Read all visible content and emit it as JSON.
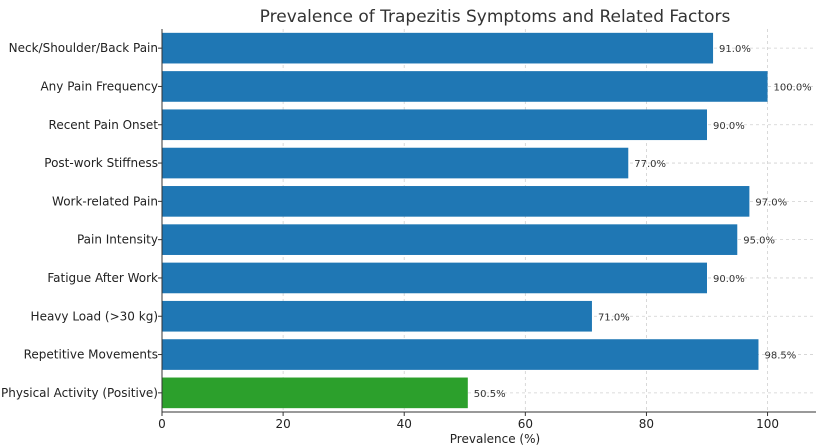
{
  "chart_data": {
    "type": "bar",
    "orientation": "horizontal",
    "title": "Prevalence of Trapezitis Symptoms and Related Factors",
    "xlabel": "Prevalence (%)",
    "ylabel": "",
    "xlim": [
      0,
      108
    ],
    "xticks": [
      0,
      20,
      40,
      60,
      80,
      100
    ],
    "grid": true,
    "categories": [
      "Neck/Shoulder/Back Pain",
      "Any Pain Frequency",
      "Recent Pain Onset",
      "Post-work Stiffness",
      "Work-related Pain",
      "Pain Intensity",
      "Fatigue After Work",
      "Heavy Load (>30 kg)",
      "Repetitive Movements",
      "Physical Activity (Positive)"
    ],
    "values": [
      91.0,
      100.0,
      90.0,
      77.0,
      97.0,
      95.0,
      90.0,
      71.0,
      98.5,
      50.5
    ],
    "value_labels": [
      "91.0%",
      "100.0%",
      "90.0%",
      "77.0%",
      "97.0%",
      "95.0%",
      "90.0%",
      "71.0%",
      "98.5%",
      "50.5%"
    ],
    "colors": [
      "#1f77b4",
      "#1f77b4",
      "#1f77b4",
      "#1f77b4",
      "#1f77b4",
      "#1f77b4",
      "#1f77b4",
      "#1f77b4",
      "#1f77b4",
      "#2ca02c"
    ]
  }
}
